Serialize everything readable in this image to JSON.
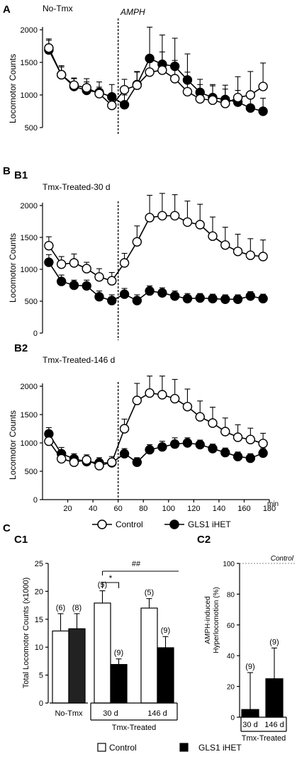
{
  "legend_top": {
    "control": "Control",
    "het": "GLS1 iHET"
  },
  "legend_bottom": {
    "control": "Control",
    "het": "GLS1 iHET"
  },
  "chart_data": [
    {
      "id": "A",
      "panel": "A",
      "subpanel": "",
      "type": "line",
      "title": "No-Tmx",
      "annotation": "AMPH",
      "vline_x": 60,
      "ylabel": "Locomotor Counts",
      "ylim": [
        500,
        2000
      ],
      "xlim": [
        0,
        180
      ],
      "yticks": [
        500,
        1000,
        1500,
        2000
      ],
      "xticks": [],
      "xunit": "",
      "x": [
        5,
        15,
        25,
        35,
        45,
        55,
        65,
        75,
        85,
        95,
        105,
        115,
        125,
        135,
        145,
        155,
        165,
        175
      ],
      "series": [
        {
          "name": "Control",
          "marker": "open-circle",
          "values": [
            1720,
            1310,
            1150,
            1110,
            1020,
            840,
            1080,
            1150,
            1350,
            1380,
            1250,
            1050,
            940,
            920,
            870,
            960,
            1000,
            1130
          ],
          "errors": [
            140,
            120,
            100,
            90,
            100,
            130,
            160,
            200,
            260,
            280,
            280,
            300,
            220,
            240,
            280,
            320,
            360,
            360
          ]
        },
        {
          "name": "GLS1 iHET",
          "marker": "filled-circle",
          "values": [
            1690,
            1310,
            1130,
            1070,
            1040,
            970,
            850,
            1160,
            1560,
            1470,
            1440,
            1230,
            1040,
            960,
            930,
            890,
            800,
            750
          ],
          "errors": [
            150,
            140,
            130,
            180,
            160,
            190,
            150,
            200,
            480,
            450,
            430,
            400,
            200,
            180,
            160,
            180,
            200,
            200
          ]
        }
      ]
    },
    {
      "id": "B1",
      "panel": "B",
      "subpanel": "B1",
      "type": "line",
      "title": "Tmx-Treated-30 d",
      "annotation": "",
      "vline_x": 60,
      "ylabel": "Locomotor Counts",
      "ylim": [
        0,
        2000
      ],
      "xlim": [
        0,
        180
      ],
      "yticks": [
        0,
        500,
        1000,
        1500,
        2000
      ],
      "xticks": [],
      "xunit": "",
      "x": [
        5,
        15,
        25,
        35,
        45,
        55,
        65,
        75,
        85,
        95,
        105,
        115,
        125,
        135,
        145,
        155,
        165,
        175
      ],
      "series": [
        {
          "name": "Control",
          "marker": "open-circle",
          "values": [
            1370,
            1080,
            1100,
            1010,
            880,
            820,
            1100,
            1430,
            1810,
            1840,
            1840,
            1740,
            1700,
            1520,
            1380,
            1280,
            1220,
            1200
          ],
          "errors": [
            140,
            120,
            140,
            100,
            130,
            130,
            150,
            250,
            350,
            350,
            330,
            330,
            320,
            300,
            280,
            270,
            260,
            260
          ]
        },
        {
          "name": "GLS1 iHET",
          "marker": "filled-circle",
          "values": [
            1110,
            810,
            750,
            740,
            570,
            510,
            610,
            510,
            660,
            630,
            580,
            540,
            550,
            540,
            530,
            530,
            580,
            540
          ],
          "errors": [
            120,
            100,
            80,
            90,
            90,
            90,
            90,
            90,
            80,
            80,
            80,
            80,
            70,
            70,
            70,
            70,
            70,
            70
          ]
        }
      ]
    },
    {
      "id": "B2",
      "panel": "B",
      "subpanel": "B2",
      "type": "line",
      "title": "Tmx-Treated-146 d",
      "annotation": "",
      "vline_x": 60,
      "ylabel": "Locomotor Counts",
      "ylim": [
        0,
        2000
      ],
      "xlim": [
        0,
        180
      ],
      "yticks": [
        0,
        500,
        1000,
        1500,
        2000
      ],
      "xticks": [
        20,
        40,
        60,
        80,
        100,
        120,
        140,
        160,
        180
      ],
      "xunit": "min",
      "x": [
        5,
        15,
        25,
        35,
        45,
        55,
        65,
        75,
        85,
        95,
        105,
        115,
        125,
        135,
        145,
        155,
        165,
        175
      ],
      "series": [
        {
          "name": "Control",
          "marker": "open-circle",
          "values": [
            1030,
            720,
            660,
            700,
            600,
            660,
            1250,
            1750,
            1880,
            1850,
            1780,
            1640,
            1460,
            1350,
            1200,
            1100,
            1060,
            990
          ],
          "errors": [
            100,
            110,
            90,
            90,
            80,
            100,
            170,
            300,
            300,
            330,
            340,
            310,
            280,
            280,
            240,
            220,
            200,
            180
          ]
        },
        {
          "name": "GLS1 iHET",
          "marker": "filled-circle",
          "values": [
            1160,
            810,
            720,
            670,
            650,
            650,
            810,
            660,
            880,
            930,
            980,
            1000,
            970,
            900,
            830,
            760,
            730,
            820
          ],
          "errors": [
            110,
            110,
            90,
            90,
            90,
            80,
            90,
            80,
            90,
            100,
            110,
            90,
            80,
            80,
            80,
            80,
            80,
            80
          ]
        }
      ]
    },
    {
      "id": "C1",
      "panel": "C",
      "subpanel": "C1",
      "type": "bar",
      "ylabel": "Total Locomotor Counts (x1000)",
      "ylim": [
        0,
        25
      ],
      "yticks": [
        0,
        5,
        10,
        15,
        20,
        25
      ],
      "groups": [
        {
          "label": "No-Tmx",
          "bars": [
            {
              "series": "Control",
              "value": 12.9,
              "error": 3.1,
              "n": "(6)"
            },
            {
              "series": "GLS1 iHET",
              "value": 13.3,
              "error": 2.7,
              "n": "(8)"
            }
          ]
        },
        {
          "label": "30 d",
          "bars": [
            {
              "series": "Control",
              "value": 17.9,
              "error": 2.2,
              "n": "(5)"
            },
            {
              "series": "GLS1 iHET",
              "value": 6.9,
              "error": 1.0,
              "n": "(9)"
            }
          ]
        },
        {
          "label": "146 d",
          "bars": [
            {
              "series": "Control",
              "value": 17.0,
              "error": 1.7,
              "n": "(5)"
            },
            {
              "series": "GLS1 iHET",
              "value": 9.9,
              "error": 2.0,
              "n": "(9)"
            }
          ]
        }
      ],
      "bracket_label": "Tmx-Treated",
      "significance": [
        {
          "label": "*",
          "between": "30 d Control vs 30 d GLS1 iHET"
        },
        {
          "label": "##",
          "between": "30 d Control vs 146 d Control"
        }
      ]
    },
    {
      "id": "C2",
      "panel": "C",
      "subpanel": "C2",
      "type": "bar",
      "ylabel": "AMPH-induced Hyperlocomotion (%)",
      "ylim": [
        0,
        100
      ],
      "yticks": [
        0,
        20,
        40,
        60,
        80,
        100
      ],
      "reference_line": {
        "value": 100,
        "label": "Control"
      },
      "bars": [
        {
          "label": "30 d",
          "value": 5,
          "error": 24,
          "n": "(9)",
          "value_label": "5%"
        },
        {
          "label": "146 d",
          "value": 25,
          "error": 20,
          "n": "(9)",
          "value_label": "25%"
        }
      ],
      "bracket_label": "Tmx-Treated"
    }
  ]
}
